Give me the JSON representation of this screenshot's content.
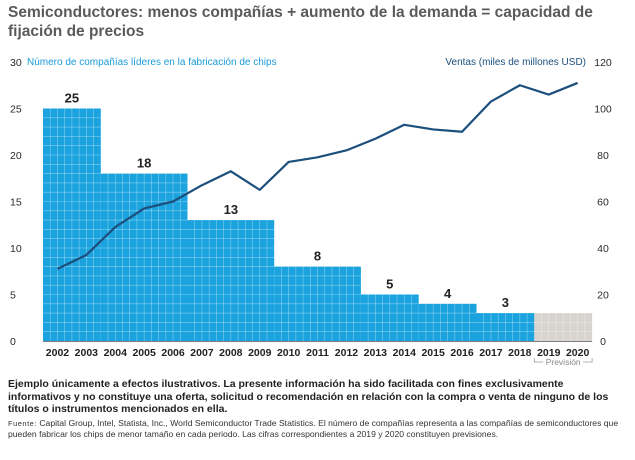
{
  "title": "Semiconductores: menos compañías + aumento de la demanda = capacidad de fijación de precios",
  "chart_data": {
    "type": "bar+line",
    "categories": [
      "2002",
      "2003",
      "2004",
      "2005",
      "2006",
      "2007",
      "2008",
      "2009",
      "2010",
      "2011",
      "2012",
      "2013",
      "2014",
      "2015",
      "2016",
      "2017",
      "2018",
      "2019",
      "2020"
    ],
    "bar_series": {
      "name": "Número de compañías líderes en la fabricación de chips",
      "axis": "left",
      "segments": [
        {
          "from": "2002",
          "to": "2003",
          "value": 25,
          "label": "25"
        },
        {
          "from": "2004",
          "to": "2006",
          "value": 18,
          "label": "18"
        },
        {
          "from": "2007",
          "to": "2009",
          "value": 13,
          "label": "13"
        },
        {
          "from": "2010",
          "to": "2012",
          "value": 8,
          "label": "8"
        },
        {
          "from": "2013",
          "to": "2014",
          "value": 5,
          "label": "5"
        },
        {
          "from": "2015",
          "to": "2016",
          "value": 4,
          "label": "4"
        },
        {
          "from": "2017",
          "to": "2018",
          "value": 3,
          "label": "3"
        },
        {
          "from": "2019",
          "to": "2020",
          "value": 3,
          "forecast": true
        }
      ]
    },
    "line_series": {
      "name": "Ventas (miles de millones USD)",
      "axis": "right",
      "x": [
        "2002",
        "2003",
        "2004",
        "2005",
        "2006",
        "2007",
        "2008",
        "2009",
        "2010",
        "2011",
        "2012",
        "2013",
        "2014",
        "2015",
        "2016",
        "2017",
        "2018",
        "2019",
        "2020"
      ],
      "values": [
        31,
        37,
        49,
        57,
        60,
        67,
        73,
        65,
        77,
        79,
        82,
        87,
        93,
        91,
        90,
        103,
        110,
        106,
        111
      ]
    },
    "y_left": {
      "min": 0,
      "max": 30,
      "ticks": [
        "0",
        "5",
        "10",
        "15",
        "20",
        "25",
        "30"
      ]
    },
    "y_right": {
      "min": 0,
      "max": 120,
      "ticks": [
        "0",
        "20",
        "40",
        "60",
        "80",
        "100",
        "120"
      ]
    },
    "forecast_label": "Previsión",
    "colors": {
      "bars": "#1aa3de",
      "forecast_bars": "#d8d4d0",
      "line": "#1c4f7c",
      "grid": "#ffffff",
      "left_label": "#1a9bd7",
      "right_label": "#1c4f7c"
    }
  },
  "disclaimer": "Ejemplo únicamente a efectos ilustrativos. La presente información ha sido facilitada con fines exclusivamente informativos y no constituye una oferta, solicitud o recomendación en relación con la compra o venta de ninguno de los títulos o instrumentos mencionados en ella.",
  "source": {
    "label": "Fuente:",
    "text": "Capital Group, Intel, Statista, Inc., World Semiconductor Trade Statistics. El número de compañías representa a las compañías de semiconductores que pueden fabricar los chips de menor tamaño en cada periodo. Las cifras correspondientes a 2019 y 2020 constituyen previsiones."
  }
}
